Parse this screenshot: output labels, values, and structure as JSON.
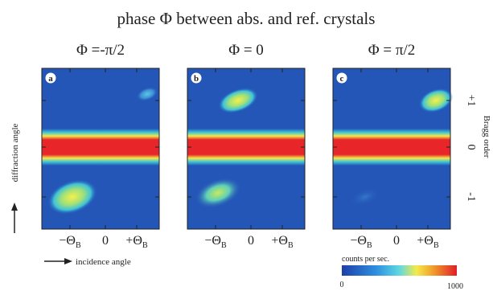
{
  "figure": {
    "title": "phase Φ between abs. and ref. crystals",
    "panels": [
      {
        "letter": "a",
        "label": "Φ =-π/2"
      },
      {
        "letter": "b",
        "label": "Φ = 0"
      },
      {
        "letter": "c",
        "label": "Φ = π/2"
      }
    ],
    "x_ticks": [
      {
        "main": "−Θ",
        "sub": "B"
      },
      {
        "main": "0"
      },
      {
        "main": "+Θ",
        "sub": "B"
      }
    ],
    "x_label": "incidence angle",
    "y_label": "diffraction angle",
    "right_label": "Bragg order",
    "right_ticks": [
      "+1",
      "0",
      "-1"
    ],
    "colorbar": {
      "label": "counts per sec.",
      "min": "0",
      "max": "1000"
    }
  }
}
